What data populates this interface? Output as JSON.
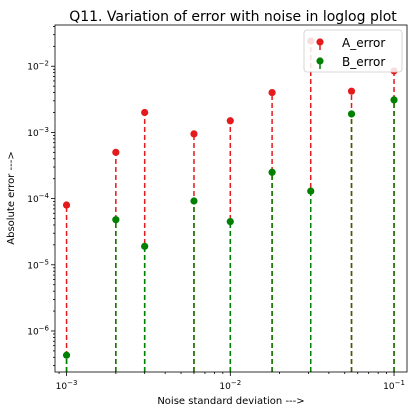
{
  "chart_data": {
    "type": "stem",
    "title": "Q11. Variation of error with noise in loglog plot",
    "xlabel": "Noise standard deviation   --->",
    "ylabel": "Absolute error   --->",
    "xscale": "log",
    "yscale": "log",
    "xlim": [
      0.00085,
      0.12
    ],
    "ylim": [
      2.4e-07,
      0.042
    ],
    "x_ticks": [
      {
        "value": 0.001,
        "base": "10",
        "exp": "−3"
      },
      {
        "value": 0.01,
        "base": "10",
        "exp": "−2"
      },
      {
        "value": 0.1,
        "base": "10",
        "exp": "−1"
      }
    ],
    "y_ticks": [
      {
        "value": 1e-06,
        "base": "10",
        "exp": "−6"
      },
      {
        "value": 1e-05,
        "base": "10",
        "exp": "−5"
      },
      {
        "value": 0.0001,
        "base": "10",
        "exp": "−4"
      },
      {
        "value": 0.001,
        "base": "10",
        "exp": "−3"
      },
      {
        "value": 0.01,
        "base": "10",
        "exp": "−2"
      }
    ],
    "x": [
      0.001,
      0.002,
      0.003,
      0.006,
      0.01,
      0.018,
      0.031,
      0.055,
      0.1
    ],
    "series": [
      {
        "name": "A_error",
        "color": "#e41a1c",
        "values": [
          8e-05,
          0.0005,
          0.002,
          0.00095,
          0.0015,
          0.004,
          0.024,
          0.0042,
          0.0085
        ]
      },
      {
        "name": "B_error",
        "color": "#008000",
        "values": [
          4.3e-07,
          4.8e-05,
          1.9e-05,
          9.2e-05,
          4.5e-05,
          0.00025,
          0.00013,
          0.0019,
          0.0031
        ]
      }
    ],
    "legend": "top-right",
    "grid": false
  }
}
